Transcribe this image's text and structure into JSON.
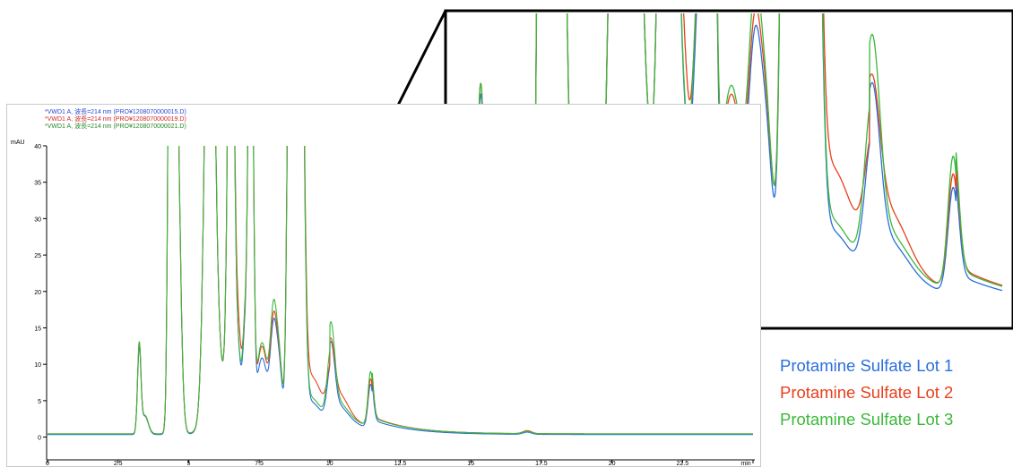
{
  "chart_data": {
    "type": "line",
    "ylabel": "mAU",
    "xlabel": "min",
    "xlim": [
      0,
      25
    ],
    "ylim": [
      -3,
      40
    ],
    "x_ticks": [
      "0",
      "2.5",
      "5",
      "7.5",
      "10",
      "12.5",
      "15",
      "17.5",
      "20",
      "22.5",
      "min"
    ],
    "y_ticks": [
      "0",
      "5",
      "10",
      "15",
      "20",
      "25",
      "30",
      "35",
      "40"
    ],
    "header_lines": [
      "*VWD1 A, 波長=214 nm (PRO¥1208070000015.D)",
      "*VWD1 A, 波長=214 nm (PRO¥1208070000019.D)",
      "*VWD1 A, 波長=214 nm (PRO¥1208070000021.D)"
    ],
    "series": [
      {
        "name": "Protamine Sulfate Lot 1",
        "color": "#2a6fdb"
      },
      {
        "name": "Protamine Sulfate Lot 2",
        "color": "#e8401c"
      },
      {
        "name": "Protamine Sulfate Lot 3",
        "color": "#3cb83a"
      }
    ],
    "peaks": [
      {
        "t": 3.25,
        "h": [
          11.5,
          12.0,
          12.0
        ],
        "w": 0.06
      },
      {
        "t": 3.45,
        "h": [
          2.5,
          2.5,
          2.5
        ],
        "w": 0.12
      },
      {
        "t": 4.35,
        "h": [
          80,
          80,
          80
        ],
        "w": 0.07
      },
      {
        "t": 4.55,
        "h": [
          55,
          55,
          55
        ],
        "w": 0.13
      },
      {
        "t": 5.75,
        "h": [
          80,
          80,
          80
        ],
        "w": 0.16
      },
      {
        "t": 6.1,
        "h": [
          8,
          8,
          8
        ],
        "w": 0.35
      },
      {
        "t": 6.5,
        "h": [
          80,
          80,
          80
        ],
        "w": 0.1
      },
      {
        "t": 6.75,
        "h": [
          9.8,
          13.5,
          10.0
        ],
        "w": 0.11
      },
      {
        "t": 7.0,
        "h": [
          12.5,
          13.0,
          14.0
        ],
        "w": 0.08
      },
      {
        "t": 7.2,
        "h": [
          80,
          80,
          80
        ],
        "w": 0.08
      },
      {
        "t": 7.6,
        "h": [
          10.5,
          12.0,
          12.5
        ],
        "w": 0.2
      },
      {
        "t": 8.0,
        "h": [
          12.0,
          12.5,
          14.0
        ],
        "w": 0.11
      },
      {
        "t": 8.2,
        "h": [
          9.0,
          9.5,
          10.0
        ],
        "w": 0.12
      },
      {
        "t": 8.6,
        "h": [
          80,
          80,
          80
        ],
        "w": 0.09
      },
      {
        "t": 8.95,
        "h": [
          80,
          80,
          80
        ],
        "w": 0.12
      },
      {
        "t": 9.3,
        "h": [
          4.5,
          8.0,
          5.0
        ],
        "w": 0.45
      },
      {
        "t": 10.05,
        "h": [
          8.0,
          6.5,
          10.0
        ],
        "w": 0.13
      },
      {
        "t": 10.4,
        "h": [
          1.5,
          2.5,
          1.5
        ],
        "w": 0.3
      },
      {
        "t": 11.45,
        "h": [
          6.0,
          6.5,
          7.5
        ],
        "w": 0.09
      },
      {
        "t": 17.0,
        "h": [
          0.3,
          0.4,
          0.3
        ],
        "w": 0.15
      }
    ],
    "tails": [
      {
        "t": 10.0,
        "amp": [
          3.0,
          3.5,
          3.5
        ],
        "tau": 1.2
      },
      {
        "t": 11.5,
        "amp": [
          1.2,
          1.4,
          1.3
        ],
        "tau": 1.4
      }
    ],
    "baseline": [
      0.35,
      0.45,
      0.45
    ],
    "zoom_range": {
      "xlim": [
        3.0,
        12.3
      ],
      "ylim": [
        0.2,
        16.0
      ]
    }
  }
}
